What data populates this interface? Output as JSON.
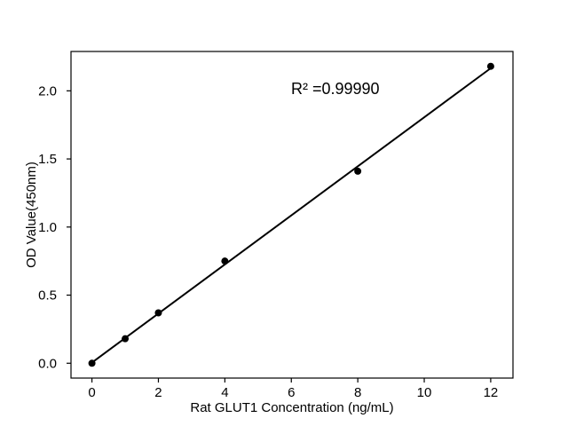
{
  "figure": {
    "background_color": "#ffffff",
    "foreground_color": "#000000"
  },
  "chart_data": {
    "type": "scatter",
    "title": "",
    "xlabel": "Rat GLUT1 Concentration (ng/mL)",
    "ylabel": "OD Value(450nm)",
    "annotation": "R² =0.99990",
    "x": [
      0,
      1,
      2,
      4,
      8,
      12
    ],
    "y": [
      0.0,
      0.18,
      0.37,
      0.75,
      1.41,
      2.18
    ],
    "fit_line": {
      "type": "linear",
      "slope": 0.1801,
      "intercept": 0.0048,
      "r_squared": 0.9999,
      "x_range": [
        0,
        12
      ]
    },
    "xticks": {
      "values": [
        0,
        2,
        4,
        6,
        8,
        10,
        12
      ],
      "labels": [
        "0",
        "2",
        "4",
        "6",
        "8",
        "10",
        "12"
      ]
    },
    "yticks": {
      "values": [
        0.0,
        0.5,
        1.0,
        1.5,
        2.0
      ],
      "labels": [
        "0.0",
        "0.5",
        "1.0",
        "1.5",
        "2.0"
      ]
    },
    "xlim": [
      -0.63,
      12.67
    ],
    "ylim": [
      -0.109,
      2.289
    ],
    "grid": false,
    "legend": null,
    "marker_color": "#000000",
    "line_color": "#000000",
    "marker_radius_px": 4
  }
}
